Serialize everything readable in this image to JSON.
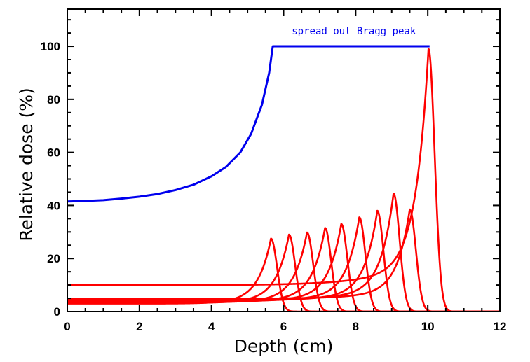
{
  "chart_data": {
    "type": "line",
    "title": "",
    "xlabel": "Depth  (cm)",
    "ylabel": "Relative dose  (%)",
    "xlim": [
      0,
      12
    ],
    "ylim": [
      0,
      114
    ],
    "xticks": [
      0,
      2,
      4,
      6,
      8,
      10,
      12
    ],
    "yticks": [
      0,
      20,
      40,
      60,
      80,
      100
    ],
    "grid": false,
    "colors": {
      "sobp": "#0000ee",
      "peaks": "#ff0000",
      "axes": "#000000"
    },
    "annotation": {
      "text": "spread out Bragg peak",
      "x": 7.95,
      "y": 104.5
    },
    "sobp": {
      "name": "spread out Bragg peak",
      "x": [
        0,
        0.5,
        1,
        1.5,
        2,
        2.5,
        3,
        3.5,
        4,
        4.4,
        4.8,
        5.1,
        5.4,
        5.6,
        5.7,
        6,
        7,
        8,
        9,
        10.05
      ],
      "y": [
        41.5,
        41.7,
        42,
        42.6,
        43.3,
        44.3,
        45.8,
        47.8,
        51,
        54.5,
        60,
        67,
        78,
        90,
        100,
        100,
        100,
        100,
        100,
        100
      ]
    },
    "bragg_peaks": [
      {
        "peak_depth": 5.65,
        "peak_dose": 27.5,
        "entrance_dose": 3.0
      },
      {
        "peak_depth": 6.15,
        "peak_dose": 29.0,
        "entrance_dose": 3.2
      },
      {
        "peak_depth": 6.65,
        "peak_dose": 29.8,
        "entrance_dose": 3.4
      },
      {
        "peak_depth": 7.15,
        "peak_dose": 31.5,
        "entrance_dose": 3.6
      },
      {
        "peak_depth": 7.6,
        "peak_dose": 33.0,
        "entrance_dose": 3.8
      },
      {
        "peak_depth": 8.1,
        "peak_dose": 35.5,
        "entrance_dose": 4.0
      },
      {
        "peak_depth": 8.6,
        "peak_dose": 38.0,
        "entrance_dose": 4.2
      },
      {
        "peak_depth": 9.05,
        "peak_dose": 44.5,
        "entrance_dose": 4.5
      },
      {
        "peak_depth": 9.5,
        "peak_dose": 38.5,
        "entrance_dose": 4.8
      },
      {
        "peak_depth": 10.02,
        "peak_dose": 99.0,
        "entrance_dose": 10.0
      }
    ]
  }
}
